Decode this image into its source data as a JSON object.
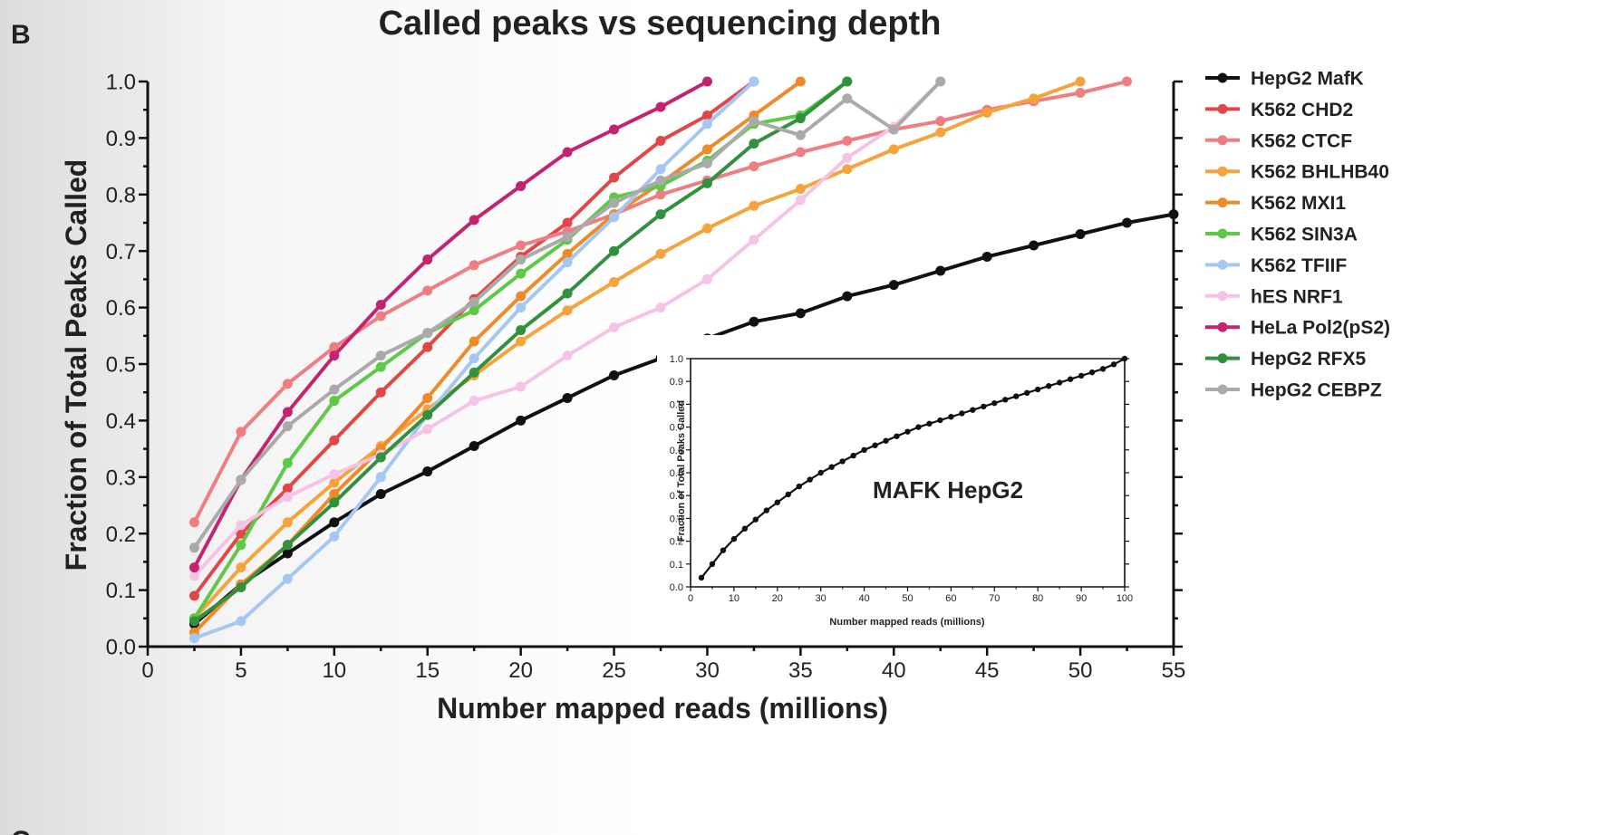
{
  "figure": {
    "panel_label": "B",
    "next_panel_label": "C"
  },
  "chart_data": [
    {
      "type": "line",
      "title": "Called peaks vs sequencing depth",
      "xlabel": "Number mapped reads (millions)",
      "ylabel": "Fraction of Total Peaks Called",
      "xlim": [
        0,
        55
      ],
      "ylim": [
        0,
        1.0
      ],
      "xticks": [
        0,
        5,
        10,
        15,
        20,
        25,
        30,
        35,
        40,
        45,
        50,
        55
      ],
      "yticks": [
        "0.0",
        "0.1",
        "0.2",
        "0.3",
        "0.4",
        "0.5",
        "0.6",
        "0.7",
        "0.8",
        "0.9",
        "1.0"
      ],
      "grid": false,
      "legend_position": "right",
      "series": [
        {
          "name": "HepG2 MafK",
          "color": "#111111",
          "x": [
            2.5,
            5,
            7.5,
            10,
            12.5,
            15,
            17.5,
            20,
            22.5,
            25,
            27.5,
            30,
            32.5,
            35,
            37.5,
            40,
            42.5,
            45,
            47.5,
            50,
            52.5,
            55
          ],
          "y": [
            0.04,
            0.11,
            0.165,
            0.22,
            0.27,
            0.31,
            0.355,
            0.4,
            0.44,
            0.48,
            0.51,
            0.545,
            0.575,
            0.59,
            0.62,
            0.64,
            0.665,
            0.69,
            0.71,
            0.73,
            0.75,
            0.765
          ]
        },
        {
          "name": "K562 CHD2",
          "color": "#e04848",
          "x": [
            2.5,
            5,
            7.5,
            10,
            12.5,
            15,
            17.5,
            20,
            22.5,
            25,
            27.5,
            30,
            32.5
          ],
          "y": [
            0.09,
            0.2,
            0.28,
            0.365,
            0.45,
            0.53,
            0.615,
            0.69,
            0.75,
            0.83,
            0.895,
            0.94,
            1.0
          ]
        },
        {
          "name": "K562 CTCF",
          "color": "#ef7e82",
          "x": [
            2.5,
            5,
            7.5,
            10,
            12.5,
            15,
            17.5,
            20,
            22.5,
            25,
            27.5,
            30,
            32.5,
            35,
            37.5,
            40,
            42.5,
            45,
            47.5,
            50,
            52.5
          ],
          "y": [
            0.22,
            0.38,
            0.465,
            0.53,
            0.585,
            0.63,
            0.675,
            0.71,
            0.735,
            0.765,
            0.8,
            0.825,
            0.85,
            0.875,
            0.895,
            0.915,
            0.93,
            0.95,
            0.965,
            0.98,
            1.0
          ]
        },
        {
          "name": "K562 BHLHB40",
          "color": "#f6a33c",
          "x": [
            2.5,
            5,
            7.5,
            10,
            12.5,
            15,
            17.5,
            20,
            22.5,
            25,
            27.5,
            30,
            32.5,
            35,
            37.5,
            40,
            42.5,
            45,
            47.5,
            50
          ],
          "y": [
            0.05,
            0.14,
            0.22,
            0.29,
            0.355,
            0.42,
            0.48,
            0.54,
            0.595,
            0.645,
            0.695,
            0.74,
            0.78,
            0.81,
            0.845,
            0.88,
            0.91,
            0.945,
            0.97,
            1.0
          ]
        },
        {
          "name": "K562 MXI1",
          "color": "#ef8a2a",
          "x": [
            2.5,
            5,
            7.5,
            10,
            12.5,
            15,
            17.5,
            20,
            22.5,
            25,
            27.5,
            30,
            32.5,
            35
          ],
          "y": [
            0.025,
            0.11,
            0.18,
            0.27,
            0.35,
            0.44,
            0.54,
            0.62,
            0.695,
            0.765,
            0.82,
            0.88,
            0.94,
            1.0
          ]
        },
        {
          "name": "K562 SIN3A",
          "color": "#5ec947",
          "x": [
            2.5,
            5,
            7.5,
            10,
            12.5,
            15,
            17.5,
            20,
            22.5,
            25,
            27.5,
            30,
            32.5,
            35,
            37.5
          ],
          "y": [
            0.05,
            0.18,
            0.325,
            0.435,
            0.495,
            0.555,
            0.595,
            0.66,
            0.72,
            0.795,
            0.815,
            0.86,
            0.925,
            0.94,
            1.0
          ]
        },
        {
          "name": "K562 TFIIF",
          "color": "#a4c8f2",
          "x": [
            2.5,
            5,
            7.5,
            10,
            12.5,
            15,
            17.5,
            20,
            22.5,
            25,
            27.5,
            30,
            32.5
          ],
          "y": [
            0.015,
            0.045,
            0.12,
            0.195,
            0.3,
            0.41,
            0.51,
            0.6,
            0.68,
            0.76,
            0.845,
            0.925,
            1.0
          ]
        },
        {
          "name": "hES NRF1",
          "color": "#f5c3e5",
          "x": [
            2.5,
            5,
            7.5,
            10,
            12.5,
            15,
            17.5,
            20,
            22.5,
            25,
            27.5,
            30,
            32.5,
            35,
            37.5,
            40,
            42.5
          ],
          "y": [
            0.125,
            0.215,
            0.265,
            0.305,
            0.34,
            0.385,
            0.435,
            0.46,
            0.515,
            0.565,
            0.6,
            0.65,
            0.72,
            0.79,
            0.865,
            0.92,
            1.0
          ]
        },
        {
          "name": "HeLa Pol2(pS2)",
          "color": "#c4246f",
          "x": [
            2.5,
            5,
            7.5,
            10,
            12.5,
            15,
            17.5,
            20,
            22.5,
            25,
            27.5,
            30
          ],
          "y": [
            0.14,
            0.295,
            0.415,
            0.515,
            0.605,
            0.685,
            0.755,
            0.815,
            0.875,
            0.915,
            0.955,
            1.0
          ]
        },
        {
          "name": "HepG2 RFX5",
          "color": "#33903f",
          "x": [
            2.5,
            5,
            7.5,
            10,
            12.5,
            15,
            17.5,
            20,
            22.5,
            25,
            27.5,
            30,
            32.5,
            35,
            37.5
          ],
          "y": [
            0.045,
            0.105,
            0.18,
            0.255,
            0.335,
            0.41,
            0.485,
            0.56,
            0.625,
            0.7,
            0.765,
            0.82,
            0.89,
            0.935,
            1.0
          ]
        },
        {
          "name": "HepG2 CEBPZ",
          "color": "#aaaaaa",
          "x": [
            2.5,
            5,
            7.5,
            10,
            12.5,
            15,
            17.5,
            20,
            22.5,
            25,
            27.5,
            30,
            32.5,
            35,
            37.5,
            40,
            42.5
          ],
          "y": [
            0.175,
            0.295,
            0.39,
            0.455,
            0.515,
            0.555,
            0.61,
            0.685,
            0.725,
            0.785,
            0.825,
            0.855,
            0.93,
            0.905,
            0.97,
            0.915,
            1.0
          ]
        }
      ]
    },
    {
      "type": "line",
      "title": "MAFK HepG2",
      "xlabel": "Number mapped reads (millions)",
      "ylabel": "Fraction of Total Peaks Called",
      "xlim": [
        0,
        100
      ],
      "ylim": [
        0,
        1.0
      ],
      "xticks": [
        0,
        10,
        20,
        30,
        40,
        50,
        60,
        70,
        80,
        90,
        100
      ],
      "yticks": [
        "0.0",
        "0.1",
        "0.2",
        "0.3",
        "0.4",
        "0.5",
        "0.6",
        "0.7",
        "0.8",
        "0.9",
        "1.0"
      ],
      "grid": false,
      "series": [
        {
          "color": "#111111",
          "x": [
            2.5,
            5,
            7.5,
            10,
            12.5,
            15,
            17.5,
            20,
            22.5,
            25,
            27.5,
            30,
            32.5,
            35,
            37.5,
            40,
            42.5,
            45,
            47.5,
            50,
            52.5,
            55,
            57.5,
            60,
            62.5,
            65,
            67.5,
            70,
            72.5,
            75,
            77.5,
            80,
            82.5,
            85,
            87.5,
            90,
            92.5,
            95,
            97.5,
            100
          ],
          "y": [
            0.04,
            0.1,
            0.16,
            0.21,
            0.255,
            0.295,
            0.335,
            0.37,
            0.405,
            0.44,
            0.47,
            0.5,
            0.525,
            0.55,
            0.575,
            0.6,
            0.62,
            0.64,
            0.66,
            0.68,
            0.7,
            0.715,
            0.73,
            0.745,
            0.76,
            0.775,
            0.79,
            0.805,
            0.82,
            0.835,
            0.85,
            0.865,
            0.88,
            0.895,
            0.91,
            0.925,
            0.94,
            0.955,
            0.975,
            1.0
          ]
        }
      ]
    }
  ]
}
